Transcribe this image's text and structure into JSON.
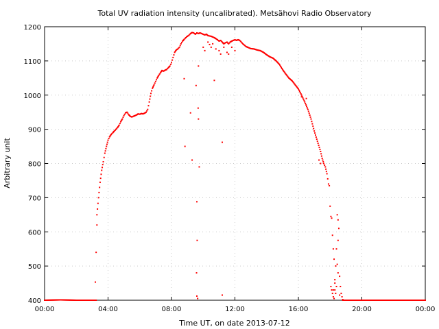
{
  "chart_data": {
    "type": "scatter",
    "title": "Total UV radiation intensity (uncalibrated). Metsähovi Radio Observatory",
    "xlabel": "Time UT, on date 2013-07-12",
    "ylabel": "Arbitrary unit",
    "xlim": [
      0,
      24
    ],
    "ylim": [
      400,
      1200
    ],
    "grid": true,
    "legend": "none",
    "x_ticks": [
      "00:00",
      "04:00",
      "08:00",
      "12:00",
      "16:00",
      "20:00",
      "00:00"
    ],
    "y_ticks": [
      "400",
      "500",
      "600",
      "700",
      "800",
      "900",
      "1000",
      "1100",
      "1200"
    ],
    "color": "#ff0000",
    "series": [
      {
        "x_unit": "hours UT",
        "main_curve": [
          [
            0.0,
            400
          ],
          [
            1.0,
            401
          ],
          [
            2.0,
            400
          ],
          [
            3.0,
            400
          ],
          [
            3.25,
            400
          ],
          [
            3.3,
            650
          ],
          [
            3.4,
            700
          ],
          [
            3.5,
            745
          ],
          [
            3.6,
            780
          ],
          [
            3.7,
            805
          ],
          [
            3.8,
            830
          ],
          [
            3.9,
            850
          ],
          [
            4.0,
            868
          ],
          [
            4.1,
            878
          ],
          [
            4.2,
            885
          ],
          [
            4.3,
            890
          ],
          [
            4.4,
            895
          ],
          [
            4.5,
            900
          ],
          [
            4.6,
            905
          ],
          [
            4.7,
            912
          ],
          [
            4.8,
            922
          ],
          [
            4.9,
            930
          ],
          [
            5.0,
            940
          ],
          [
            5.1,
            948
          ],
          [
            5.2,
            950
          ],
          [
            5.3,
            943
          ],
          [
            5.4,
            938
          ],
          [
            5.5,
            936
          ],
          [
            5.6,
            938
          ],
          [
            5.7,
            940
          ],
          [
            5.8,
            942
          ],
          [
            5.9,
            945
          ],
          [
            6.0,
            944
          ],
          [
            6.1,
            946
          ],
          [
            6.2,
            945
          ],
          [
            6.3,
            947
          ],
          [
            6.4,
            950
          ],
          [
            6.5,
            958
          ],
          [
            6.6,
            980
          ],
          [
            6.7,
            1005
          ],
          [
            6.8,
            1020
          ],
          [
            6.9,
            1030
          ],
          [
            7.0,
            1040
          ],
          [
            7.1,
            1050
          ],
          [
            7.2,
            1058
          ],
          [
            7.3,
            1065
          ],
          [
            7.4,
            1072
          ],
          [
            7.5,
            1070
          ],
          [
            7.6,
            1073
          ],
          [
            7.7,
            1075
          ],
          [
            7.8,
            1080
          ],
          [
            7.9,
            1085
          ],
          [
            8.0,
            1095
          ],
          [
            8.1,
            1110
          ],
          [
            8.2,
            1125
          ],
          [
            8.3,
            1132
          ],
          [
            8.4,
            1135
          ],
          [
            8.5,
            1140
          ],
          [
            8.6,
            1150
          ],
          [
            8.7,
            1158
          ],
          [
            8.8,
            1163
          ],
          [
            8.9,
            1168
          ],
          [
            9.0,
            1172
          ],
          [
            9.1,
            1175
          ],
          [
            9.2,
            1180
          ],
          [
            9.3,
            1183
          ],
          [
            9.4,
            1182
          ],
          [
            9.5,
            1178
          ],
          [
            9.6,
            1182
          ],
          [
            9.7,
            1180
          ],
          [
            9.8,
            1182
          ],
          [
            9.9,
            1180
          ],
          [
            10.0,
            1178
          ],
          [
            10.1,
            1176
          ],
          [
            10.2,
            1178
          ],
          [
            10.3,
            1174
          ],
          [
            10.4,
            1173
          ],
          [
            10.5,
            1172
          ],
          [
            10.6,
            1170
          ],
          [
            10.7,
            1168
          ],
          [
            10.8,
            1165
          ],
          [
            10.9,
            1162
          ],
          [
            11.0,
            1158
          ],
          [
            11.1,
            1160
          ],
          [
            11.2,
            1155
          ],
          [
            11.3,
            1150
          ],
          [
            11.4,
            1153
          ],
          [
            11.5,
            1155
          ],
          [
            11.6,
            1150
          ],
          [
            11.7,
            1155
          ],
          [
            11.8,
            1158
          ],
          [
            11.9,
            1160
          ],
          [
            12.0,
            1162
          ],
          [
            12.1,
            1160
          ],
          [
            12.2,
            1162
          ],
          [
            12.3,
            1160
          ],
          [
            12.4,
            1155
          ],
          [
            12.5,
            1150
          ],
          [
            12.6,
            1146
          ],
          [
            12.7,
            1142
          ],
          [
            12.8,
            1140
          ],
          [
            12.9,
            1138
          ],
          [
            13.0,
            1136
          ],
          [
            13.2,
            1135
          ],
          [
            13.4,
            1132
          ],
          [
            13.6,
            1130
          ],
          [
            13.8,
            1125
          ],
          [
            14.0,
            1118
          ],
          [
            14.2,
            1112
          ],
          [
            14.4,
            1108
          ],
          [
            14.6,
            1100
          ],
          [
            14.8,
            1090
          ],
          [
            15.0,
            1075
          ],
          [
            15.2,
            1062
          ],
          [
            15.4,
            1050
          ],
          [
            15.6,
            1042
          ],
          [
            15.8,
            1030
          ],
          [
            16.0,
            1018
          ],
          [
            16.2,
            1000
          ],
          [
            16.4,
            980
          ],
          [
            16.6,
            958
          ],
          [
            16.8,
            930
          ],
          [
            17.0,
            895
          ],
          [
            17.2,
            865
          ],
          [
            17.4,
            835
          ],
          [
            17.5,
            815
          ],
          [
            17.6,
            800
          ],
          [
            17.7,
            790
          ],
          [
            17.8,
            770
          ],
          [
            17.9,
            740
          ],
          [
            17.95,
            735
          ]
        ],
        "scattered": [
          [
            3.2,
            453
          ],
          [
            3.25,
            540
          ],
          [
            3.3,
            620
          ],
          [
            8.8,
            1048
          ],
          [
            8.85,
            850
          ],
          [
            9.2,
            948
          ],
          [
            9.3,
            810
          ],
          [
            9.55,
            1028
          ],
          [
            9.6,
            688
          ],
          [
            9.62,
            575
          ],
          [
            9.58,
            480
          ],
          [
            9.6,
            412
          ],
          [
            9.65,
            405
          ],
          [
            9.68,
            962
          ],
          [
            9.7,
            930
          ],
          [
            9.75,
            790
          ],
          [
            9.7,
            1085
          ],
          [
            10.0,
            1140
          ],
          [
            10.1,
            1130
          ],
          [
            10.3,
            1155
          ],
          [
            10.4,
            1148
          ],
          [
            10.5,
            1140
          ],
          [
            10.6,
            1150
          ],
          [
            10.7,
            1043
          ],
          [
            10.8,
            1135
          ],
          [
            11.0,
            1130
          ],
          [
            11.1,
            1120
          ],
          [
            11.2,
            862
          ],
          [
            11.2,
            415
          ],
          [
            11.3,
            1140
          ],
          [
            11.5,
            1125
          ],
          [
            11.6,
            1120
          ],
          [
            11.8,
            1140
          ],
          [
            12.0,
            1130
          ],
          [
            16.2,
            995
          ],
          [
            16.5,
            990
          ],
          [
            17.3,
            810
          ],
          [
            17.4,
            800
          ],
          [
            18.0,
            675
          ],
          [
            18.05,
            645
          ],
          [
            18.1,
            640
          ],
          [
            18.15,
            590
          ],
          [
            18.2,
            550
          ],
          [
            18.25,
            520
          ],
          [
            18.3,
            450
          ],
          [
            18.05,
            440
          ],
          [
            18.1,
            430
          ],
          [
            18.15,
            420
          ],
          [
            18.2,
            410
          ],
          [
            18.25,
            405
          ],
          [
            18.3,
            430
          ],
          [
            18.35,
            420
          ],
          [
            18.4,
            440
          ],
          [
            18.45,
            650
          ],
          [
            18.5,
            635
          ],
          [
            18.55,
            610
          ],
          [
            18.5,
            575
          ],
          [
            18.45,
            505
          ],
          [
            18.5,
            480
          ],
          [
            18.6,
            470
          ],
          [
            18.65,
            440
          ],
          [
            18.7,
            420
          ],
          [
            18.75,
            410
          ],
          [
            18.4,
            550
          ],
          [
            18.35,
            500
          ],
          [
            18.3,
            460
          ],
          [
            18.2,
            430
          ],
          [
            18.6,
            415
          ],
          [
            18.8,
            402
          ],
          [
            18.9,
            400
          ],
          [
            19.0,
            400
          ],
          [
            20.0,
            400
          ],
          [
            21.0,
            400
          ],
          [
            22.0,
            400
          ],
          [
            23.0,
            400
          ],
          [
            24.0,
            400
          ]
        ]
      }
    ]
  }
}
